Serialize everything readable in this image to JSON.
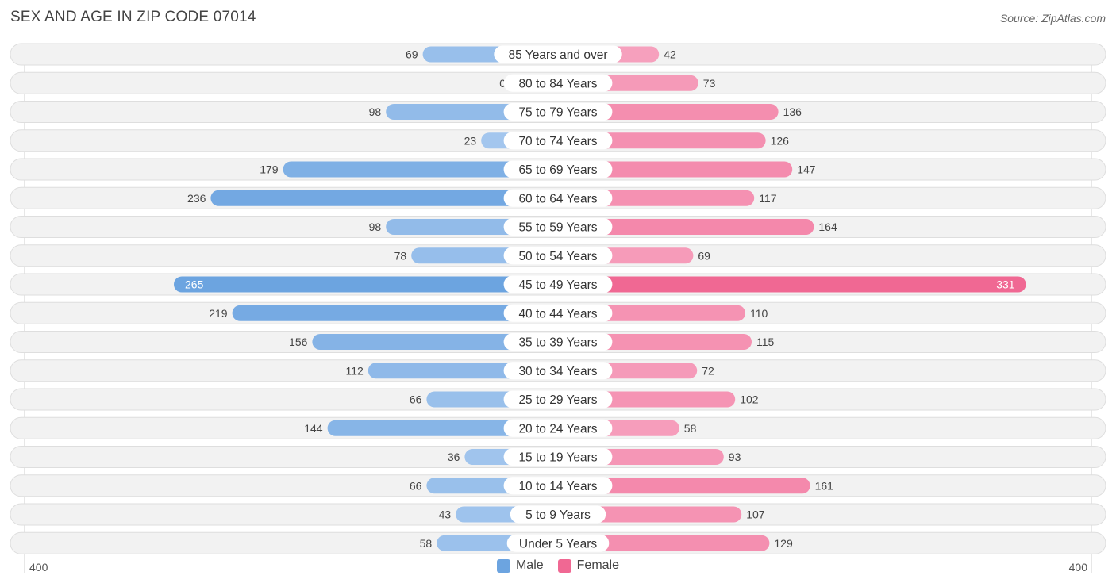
{
  "title": "SEX AND AGE IN ZIP CODE 07014",
  "source": "Source: ZipAtlas.com",
  "colors": {
    "male": "#6ca4e0",
    "male_light": "#a8c9ef",
    "female": "#f06893",
    "female_light": "#f7a8c3",
    "row_bg": "#f2f2f2",
    "row_border": "#dedede"
  },
  "chart_data": {
    "type": "bar",
    "orientation": "horizontal-diverging",
    "title": "SEX AND AGE IN ZIP CODE 07014",
    "xlim": [
      0,
      400
    ],
    "axis_left_label": "400",
    "axis_right_label": "400",
    "legend_position": "bottom-center",
    "categories": [
      "85 Years and over",
      "80 to 84 Years",
      "75 to 79 Years",
      "70 to 74 Years",
      "65 to 69 Years",
      "60 to 64 Years",
      "55 to 59 Years",
      "50 to 54 Years",
      "45 to 49 Years",
      "40 to 44 Years",
      "35 to 39 Years",
      "30 to 34 Years",
      "25 to 29 Years",
      "20 to 24 Years",
      "15 to 19 Years",
      "10 to 14 Years",
      "5 to 9 Years",
      "Under 5 Years"
    ],
    "series": [
      {
        "name": "Male",
        "values": [
          69,
          0,
          98,
          23,
          179,
          236,
          98,
          78,
          265,
          219,
          156,
          112,
          66,
          144,
          36,
          66,
          43,
          58
        ]
      },
      {
        "name": "Female",
        "values": [
          42,
          73,
          136,
          126,
          147,
          117,
          164,
          69,
          331,
          110,
          115,
          72,
          102,
          58,
          93,
          161,
          107,
          129
        ]
      }
    ]
  }
}
